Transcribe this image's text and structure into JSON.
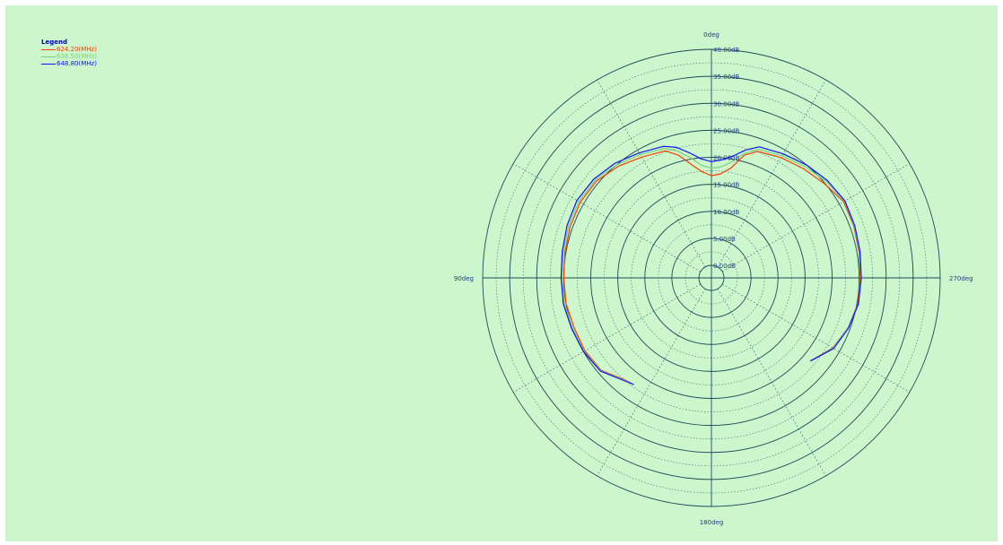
{
  "chart_data": {
    "type": "polar",
    "legend": {
      "title": "Legend",
      "position": "top-left",
      "entries": [
        {
          "label": "624.20(MHz)",
          "color": "#ff3b00"
        },
        {
          "label": "636.50(MHz)",
          "color": "#7bd07b"
        },
        {
          "label": "648.80(MHz)",
          "color": "#1010ff"
        }
      ]
    },
    "angle_labels": [
      {
        "angle": 0,
        "text": "0deg"
      },
      {
        "angle": 90,
        "text": "90deg"
      },
      {
        "angle": 180,
        "text": "180deg"
      },
      {
        "angle": 270,
        "text": "270deg"
      }
    ],
    "angle_direction": "counter-clockwise from top",
    "radial_ticks": [
      {
        "value": 0,
        "text": "0.00dB"
      },
      {
        "value": 5,
        "text": "5.00dB"
      },
      {
        "value": 10,
        "text": "10.00dB"
      },
      {
        "value": 15,
        "text": "15.00dB"
      },
      {
        "value": 20,
        "text": "20.00dB"
      },
      {
        "value": 25,
        "text": "25.00dB"
      },
      {
        "value": 30,
        "text": "30.00dB"
      },
      {
        "value": 35,
        "text": "35.00dB"
      },
      {
        "value": 40,
        "text": "40.00dB"
      }
    ],
    "radial_range": [
      0,
      40
    ],
    "angular_grid_step_deg": 30,
    "grid": true,
    "series": [
      {
        "name": "624.20(MHz)",
        "color": "#ff3b00",
        "angles_deg": [
          -130,
          -120,
          -110,
          -100,
          -90,
          -80,
          -70,
          -60,
          -50,
          -40,
          -30,
          -20,
          -15,
          -10,
          -5,
          0,
          5,
          10,
          15,
          20,
          30,
          40,
          50,
          60,
          70,
          80,
          90,
          100,
          110,
          120,
          130,
          140,
          144
        ],
        "values_db": [
          21.6,
          23.6,
          24.6,
          25.2,
          25.2,
          25.4,
          25.7,
          25.9,
          24.9,
          24.1,
          23.4,
          22.6,
          21.2,
          18.3,
          17.0,
          16.6,
          17.4,
          19.0,
          21.2,
          22.7,
          23.5,
          24.6,
          25.5,
          25.7,
          25.5,
          25.2,
          25.0,
          25.0,
          24.7,
          24.7,
          24.3,
          22.4,
          22.1
        ]
      },
      {
        "name": "636.50(MHz)",
        "color": "#7bd07b",
        "angles_deg": [
          -130,
          -120,
          -110,
          -100,
          -90,
          -80,
          -70,
          -60,
          -50,
          -40,
          -30,
          -20,
          -15,
          -10,
          -5,
          0,
          5,
          10,
          15,
          20,
          30,
          40,
          50,
          60,
          70,
          80,
          90,
          100,
          110,
          120,
          130,
          140,
          144
        ],
        "values_db": [
          21.6,
          23.7,
          24.6,
          25.3,
          25.3,
          25.5,
          25.8,
          26.1,
          25.4,
          24.6,
          23.8,
          23.0,
          21.6,
          19.5,
          18.3,
          18.0,
          18.6,
          20.3,
          22.0,
          23.2,
          24.0,
          25.0,
          25.8,
          26.0,
          25.8,
          25.5,
          25.3,
          25.3,
          25.0,
          24.9,
          24.4,
          22.5,
          22.1
        ]
      },
      {
        "name": "648.80(MHz)",
        "color": "#1010ff",
        "angles_deg": [
          -130,
          -120,
          -110,
          -100,
          -90,
          -80,
          -70,
          -60,
          -50,
          -40,
          -30,
          -20,
          -15,
          -10,
          -5,
          0,
          5,
          10,
          15,
          20,
          30,
          40,
          50,
          60,
          70,
          80,
          90,
          100,
          110,
          120,
          130,
          140,
          144
        ],
        "values_db": [
          21.6,
          23.8,
          24.7,
          25.3,
          25.4,
          25.6,
          25.9,
          26.2,
          25.7,
          25.0,
          24.2,
          23.5,
          22.2,
          20.6,
          19.6,
          19.2,
          19.8,
          21.2,
          22.7,
          23.6,
          24.4,
          25.4,
          26.1,
          26.4,
          26.1,
          25.7,
          25.5,
          25.5,
          25.2,
          25.0,
          24.5,
          22.6,
          22.1
        ]
      }
    ]
  }
}
